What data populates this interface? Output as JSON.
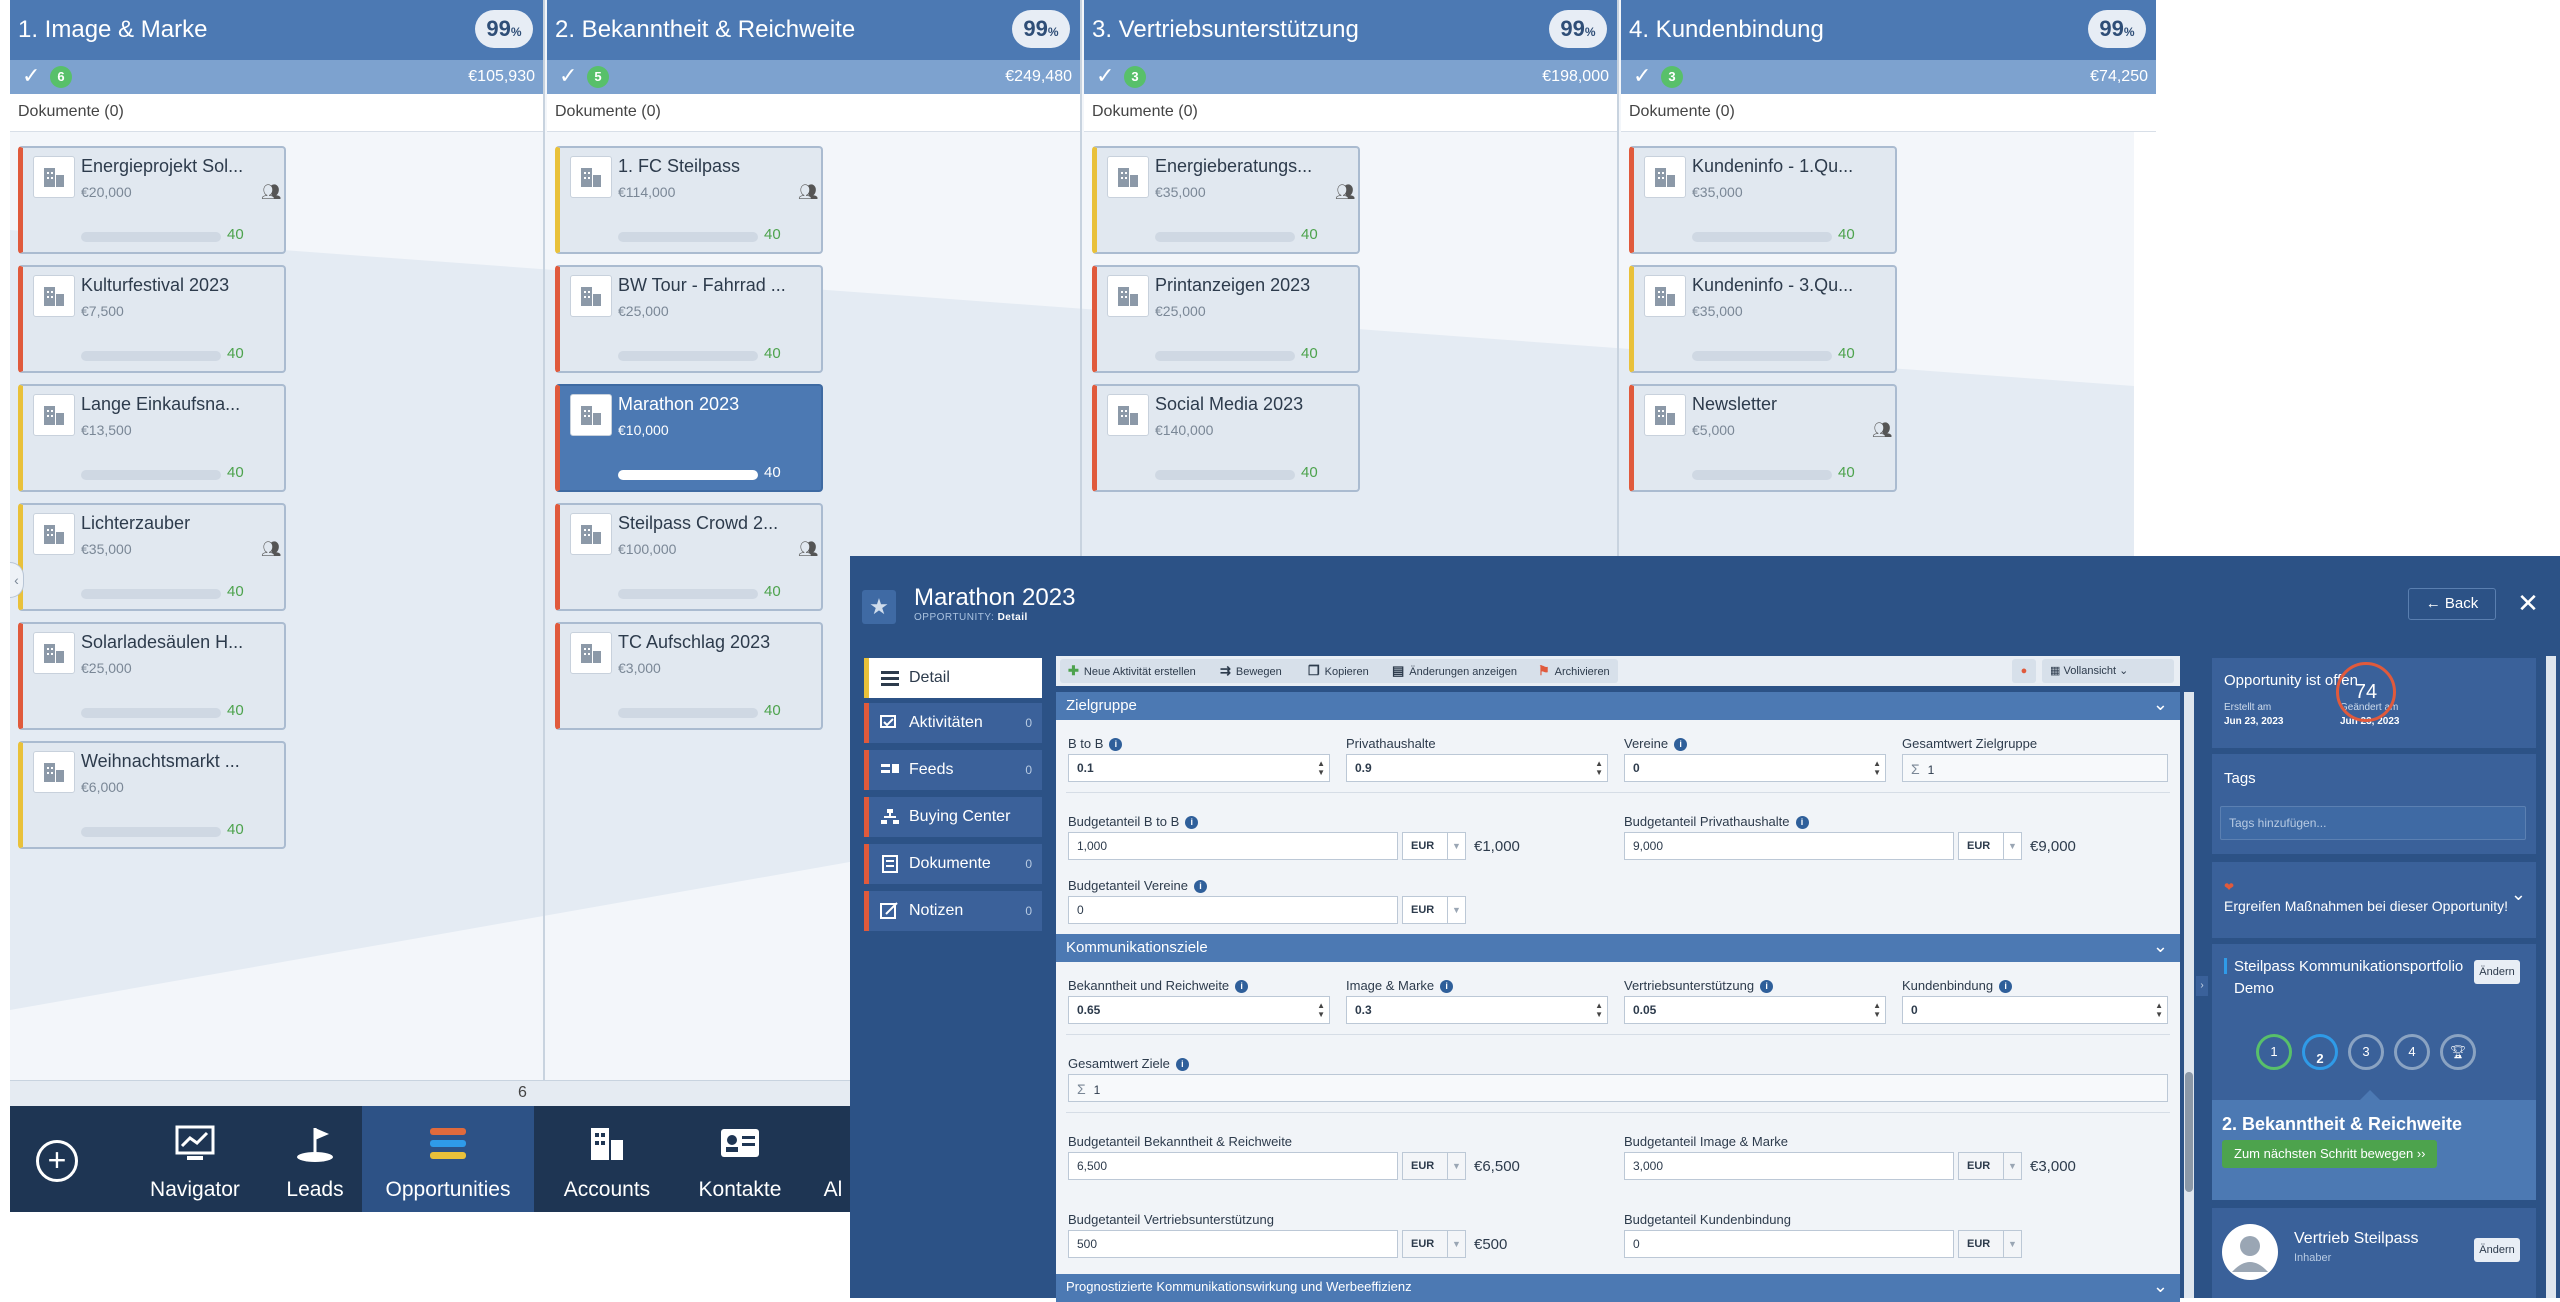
{
  "board": {
    "columns": [
      {
        "title": "1. Image & Marke",
        "pct": "99",
        "pct_unit": "%",
        "count": "6",
        "sum": "€105,930",
        "docs": "Dokumente (0)"
      },
      {
        "title": "2. Bekanntheit & Reichweite",
        "pct": "99",
        "pct_unit": "%",
        "count": "5",
        "sum": "€249,480",
        "docs": "Dokumente (0)"
      },
      {
        "title": "3. Vertriebsunterstützung",
        "pct": "99",
        "pct_unit": "%",
        "count": "3",
        "sum": "€198,000",
        "docs": "Dokumente (0)"
      },
      {
        "title": "4. Kundenbindung",
        "pct": "99",
        "pct_unit": "%",
        "count": "3",
        "sum": "€74,250",
        "docs": "Dokumente (0)"
      }
    ],
    "cards": [
      [
        {
          "name": "Energieprojekt Sol...",
          "value": "€20,000",
          "score": "40"
        },
        {
          "name": "Kulturfestival 2023",
          "value": "€7,500",
          "score": "40"
        },
        {
          "name": "Lange Einkaufsna...",
          "value": "€13,500",
          "score": "40"
        },
        {
          "name": "Lichterzauber",
          "value": "€35,000",
          "score": "40"
        },
        {
          "name": "Solarladesäulen H...",
          "value": "€25,000",
          "score": "40"
        },
        {
          "name": "Weihnachtsmarkt ...",
          "value": "€6,000",
          "score": "40"
        }
      ],
      [
        {
          "name": "1. FC Steilpass",
          "value": "€114,000",
          "score": "40"
        },
        {
          "name": "BW Tour - Fahrrad ...",
          "value": "€25,000",
          "score": "40"
        },
        {
          "name": "Marathon 2023",
          "value": "€10,000",
          "score": "40"
        },
        {
          "name": "Steilpass Crowd 2...",
          "value": "€100,000",
          "score": "40"
        },
        {
          "name": "TC Aufschlag 2023",
          "value": "€3,000",
          "score": "40"
        }
      ],
      [
        {
          "name": "Energieberatungs...",
          "value": "€35,000",
          "score": "40"
        },
        {
          "name": "Printanzeigen 2023",
          "value": "€25,000",
          "score": "40"
        },
        {
          "name": "Social Media 2023",
          "value": "€140,000",
          "score": "40"
        }
      ],
      [
        {
          "name": "Kundeninfo - 1.Qu...",
          "value": "€35,000",
          "score": "40"
        },
        {
          "name": "Kundeninfo - 3.Qu...",
          "value": "€35,000",
          "score": "40"
        },
        {
          "name": "Newsletter",
          "value": "€5,000",
          "score": "40"
        }
      ]
    ],
    "page_number": "6"
  },
  "nav": {
    "items": [
      {
        "label": "Navigator",
        "icon": "chart-icon"
      },
      {
        "label": "Leads",
        "icon": "flag-icon"
      },
      {
        "label": "Opportunities",
        "icon": "stack-icon"
      },
      {
        "label": "Accounts",
        "icon": "building-icon"
      },
      {
        "label": "Kontakte",
        "icon": "contact-card-icon"
      },
      {
        "label": "Al"
      }
    ]
  },
  "detail": {
    "title": "Marathon 2023",
    "subtitle_prefix": "OPPORTUNITY:",
    "subtitle_page": "Detail",
    "back_label": "Back",
    "tabs": [
      {
        "label": "Detail",
        "count": ""
      },
      {
        "label": "Aktivitäten",
        "count": "0"
      },
      {
        "label": "Feeds",
        "count": "0"
      },
      {
        "label": "Buying Center",
        "count": ""
      },
      {
        "label": "Dokumente",
        "count": "0"
      },
      {
        "label": "Notizen",
        "count": "0"
      }
    ],
    "toolbar": {
      "new_activity": "Neue Aktivität erstellen",
      "move": "Bewegen",
      "copy": "Kopieren",
      "changes": "Änderungen anzeigen",
      "archive": "Archivieren",
      "view": "Vollansicht"
    },
    "sections": {
      "zielgruppe": "Zielgruppe",
      "kommunikationsziele": "Kommunikationsziele",
      "prognose": "Prognostizierte Kommunikationswirkung und Werbeeffizienz"
    },
    "fields": {
      "btob_label": "B to B",
      "btob_value": "0.1",
      "privat_label": "Privathaushalte",
      "privat_value": "0.9",
      "vereine_label": "Vereine",
      "vereine_value": "0",
      "gesamt_ziel_label": "Gesamtwert Zielgruppe",
      "gesamt_ziel_value": "1",
      "budget_btob_label": "Budgetanteil B to B",
      "budget_btob_value": "1,000",
      "budget_btob_cur": "EUR",
      "budget_btob_calc": "€1,000",
      "budget_privat_label": "Budgetanteil Privathaushalte",
      "budget_privat_value": "9,000",
      "budget_privat_cur": "EUR",
      "budget_privat_calc": "€9,000",
      "budget_vereine_label": "Budgetanteil Vereine",
      "budget_vereine_value": "0",
      "budget_vereine_cur": "EUR",
      "bek_label": "Bekanntheit und Reichweite",
      "bek_value": "0.65",
      "img_label": "Image & Marke",
      "img_value": "0.3",
      "vert_label": "Vertriebsunterstützung",
      "vert_value": "0.05",
      "kund_label": "Kundenbindung",
      "kund_value": "0",
      "gesamt_ziele_label": "Gesamtwert Ziele",
      "gesamt_ziele_value": "1",
      "budget_bek_label": "Budgetanteil Bekanntheit & Reichweite",
      "budget_bek_value": "6,500",
      "budget_bek_cur": "EUR",
      "budget_bek_calc": "€6,500",
      "budget_img_label": "Budgetanteil Image & Marke",
      "budget_img_value": "3,000",
      "budget_img_cur": "EUR",
      "budget_img_calc": "€3,000",
      "budget_vert_label": "Budgetanteil Vertriebsunterstützung",
      "budget_vert_value": "500",
      "budget_vert_cur": "EUR",
      "budget_vert_calc": "€500",
      "budget_kund_label": "Budgetanteil Kundenbindung",
      "budget_kund_value": "0",
      "budget_kund_cur": "EUR"
    },
    "right": {
      "status": "Opportunity ist offen",
      "created_label": "Erstellt am",
      "created_date": "Jun 23, 2023",
      "changed_label": "Geändert am",
      "changed_date": "Jun 23, 2023",
      "score": "74",
      "tags_title": "Tags",
      "tags_placeholder": "Tags hinzufügen...",
      "action_text": "Ergreifen Maßnahmen bei dieser Opportunity!",
      "portfolio": "Steilpass Kommunikationsportfolio Demo",
      "change_label": "Ändern",
      "steps": [
        "1",
        "2",
        "3",
        "4"
      ],
      "stage_title": "2. Bekanntheit & Reichweite",
      "next_step": "Zum nächsten Schritt bewegen ››",
      "owner_name": "Vertrieb Steilpass",
      "owner_role": "Inhaber"
    }
  }
}
